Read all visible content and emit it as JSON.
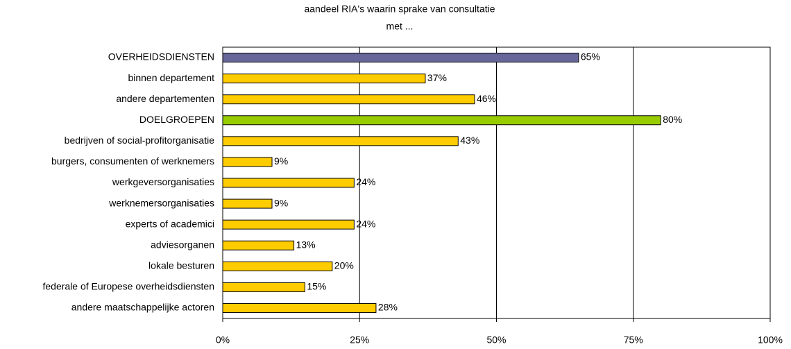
{
  "chart_data": {
    "type": "bar",
    "orientation": "horizontal",
    "title": [
      "aandeel RIA's waarin sprake van consultatie",
      "met ..."
    ],
    "categories": [
      "OVERHEIDSDIENSTEN",
      "binnen departement",
      "andere departementen",
      "DOELGROEPEN",
      "bedrijven of social-profitorganisatie",
      "burgers, consumenten of werknemers",
      "werkgeversorganisaties",
      "werknemersorganisaties",
      "experts of academici",
      "adviesorganen",
      "lokale besturen",
      "federale of Europese overheidsdiensten",
      "andere maatschappelijke actoren"
    ],
    "values": [
      65,
      37,
      46,
      80,
      43,
      9,
      24,
      9,
      24,
      13,
      20,
      15,
      28
    ],
    "value_labels": [
      "65%",
      "37%",
      "46%",
      "80%",
      "43%",
      "9%",
      "24%",
      "9%",
      "24%",
      "13%",
      "20%",
      "15%",
      "28%"
    ],
    "colors": [
      "#666699",
      "#ffcc00",
      "#ffcc00",
      "#99cc00",
      "#ffcc00",
      "#ffcc00",
      "#ffcc00",
      "#ffcc00",
      "#ffcc00",
      "#ffcc00",
      "#ffcc00",
      "#ffcc00",
      "#ffcc00"
    ],
    "xlim": [
      0,
      100
    ],
    "xticks": [
      {
        "value": 0,
        "label": "0%"
      },
      {
        "value": 25,
        "label": "25%"
      },
      {
        "value": 50,
        "label": "50%"
      },
      {
        "value": 75,
        "label": "75%"
      },
      {
        "value": 100,
        "label": "100%"
      }
    ],
    "grid": true
  }
}
